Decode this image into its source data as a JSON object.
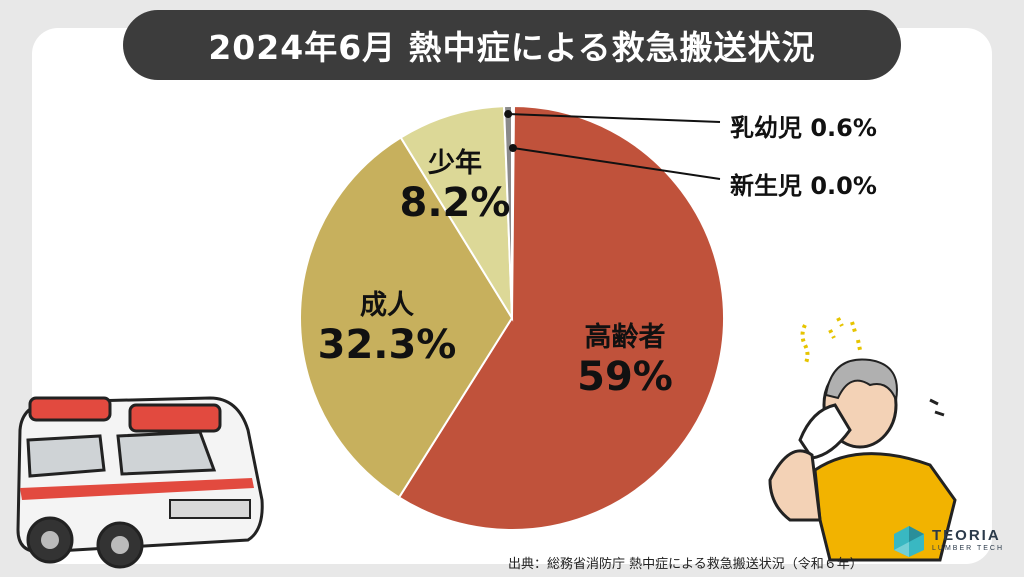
{
  "title": "2024年6月 熱中症による救急搬送状況",
  "source": "出典：総務省消防庁 熱中症による救急搬送状況（令和６年）",
  "logo": {
    "name": "TEORIA",
    "sub": "LUMBER TECH"
  },
  "chart_data": {
    "type": "pie",
    "slices": [
      {
        "label": "高齢者",
        "value": 59,
        "display": "59%",
        "color": "#c0523b"
      },
      {
        "label": "成人",
        "value": 32.3,
        "display": "32.3%",
        "color": "#c7b05d"
      },
      {
        "label": "少年",
        "value": 8.2,
        "display": "8.2%",
        "color": "#dcd897"
      },
      {
        "label": "乳幼児",
        "value": 0.6,
        "display": "0.6%",
        "color": "#8a8a8a"
      },
      {
        "label": "新生児",
        "value": 0.0,
        "display": "0.0%",
        "color": "#555555"
      }
    ],
    "callouts": [
      {
        "text": "乳幼児 0.6%"
      },
      {
        "text": "新生児 0.0%"
      }
    ]
  }
}
